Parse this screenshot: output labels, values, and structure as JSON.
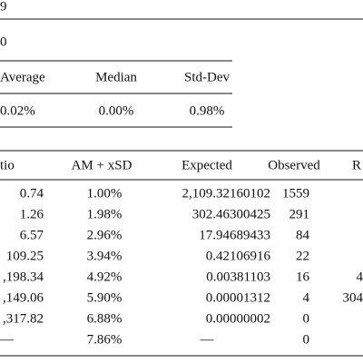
{
  "header": {
    "title": "9"
  },
  "subtitle": "0",
  "summary": {
    "columns": [
      "Average",
      "Median",
      "Std-Dev"
    ],
    "rows": [
      [
        "0.02%",
        "0.00%",
        "0.98%"
      ]
    ]
  },
  "table": {
    "columns": [
      "tio",
      "AM + xSD",
      "Expected",
      "Observed",
      "R"
    ],
    "rows": [
      [
        "0.74",
        "1.00%",
        "2,109.32160102",
        "1559"
      ],
      [
        "1.26",
        "1.98%",
        "302.46300425",
        "291"
      ],
      [
        "6.57",
        "2.96%",
        "17.94689433",
        "84"
      ],
      [
        "109.25",
        "3.94%",
        "0.42106916",
        "22"
      ],
      [
        ",198.34",
        "4.92%",
        "0.00381103",
        "16",
        "4"
      ],
      [
        ",149.06",
        "5.90%",
        "0.00001312",
        "4",
        "304"
      ],
      [
        ",317.82",
        "6.88%",
        "0.00000002",
        "0"
      ],
      [
        "—",
        "7.86%",
        "—",
        "0"
      ]
    ]
  }
}
